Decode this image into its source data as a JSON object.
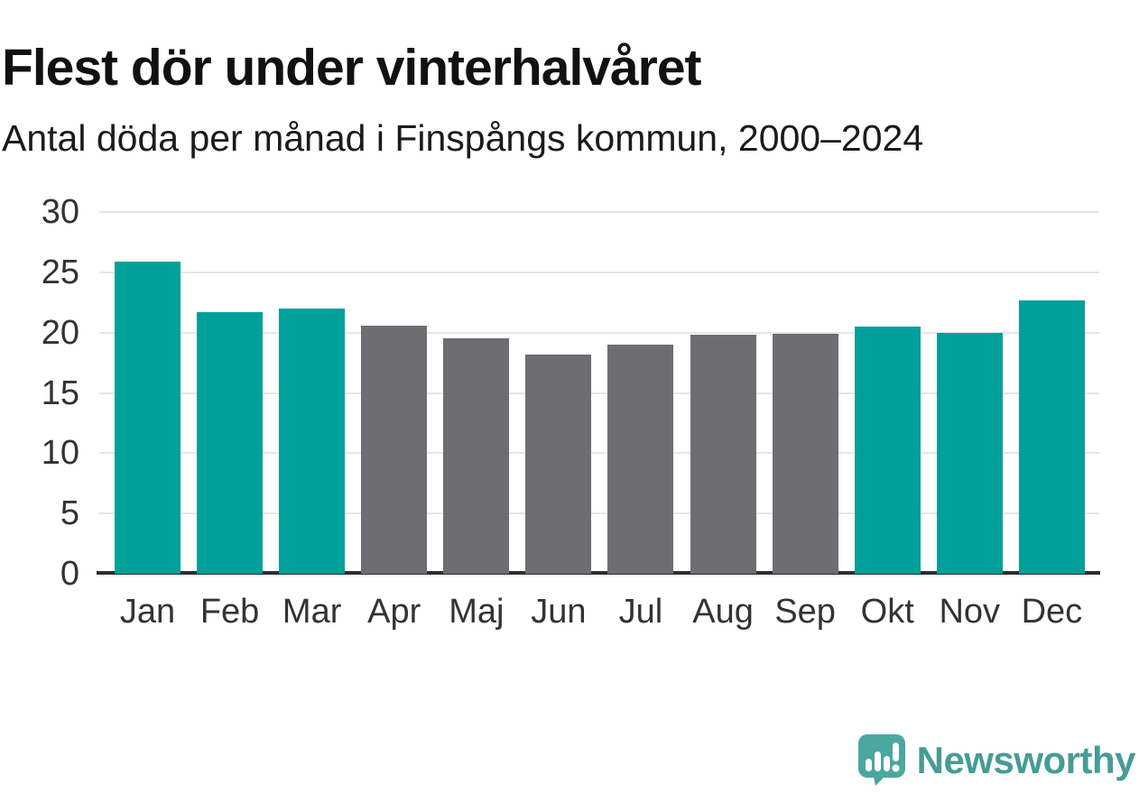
{
  "header": {
    "title": "Flest dör under vinterhalvåret",
    "subtitle": "Antal döda per månad i Finspångs kommun, 2000–2024"
  },
  "chart_data": {
    "type": "bar",
    "title": "Flest dör under vinterhalvåret",
    "subtitle": "Antal döda per månad i Finspångs kommun, 2000–2024",
    "categories": [
      "Jan",
      "Feb",
      "Mar",
      "Apr",
      "Maj",
      "Jun",
      "Jul",
      "Aug",
      "Sep",
      "Okt",
      "Nov",
      "Dec"
    ],
    "values": [
      25.9,
      21.7,
      22.0,
      20.6,
      19.5,
      18.2,
      19.0,
      19.8,
      19.9,
      20.5,
      20.0,
      22.7
    ],
    "bar_color_roles": [
      "highlight",
      "highlight",
      "highlight",
      "base",
      "base",
      "base",
      "base",
      "base",
      "base",
      "highlight",
      "highlight",
      "highlight"
    ],
    "colors": {
      "highlight": "#00a09a",
      "base": "#6d6d72"
    },
    "xlabel": "",
    "ylabel": "",
    "ylim": [
      0,
      30
    ],
    "yticks": [
      0,
      5,
      10,
      15,
      20,
      25,
      30
    ],
    "grid": true,
    "legend": "none"
  },
  "branding": {
    "logo_text": "Newsworthy",
    "logo_icon": "newsworthy-bubble-barchart-icon",
    "logo_color": "#469c96",
    "icon_color": "#4aa8a0"
  }
}
